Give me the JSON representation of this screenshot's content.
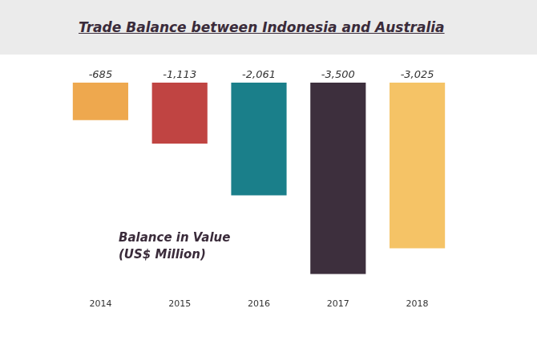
{
  "chart_data": {
    "type": "bar",
    "title": "Trade Balance between Indonesia and Australia",
    "annotation": [
      "Balance in Value",
      "(US$ Million)"
    ],
    "categories": [
      "2014",
      "2015",
      "2016",
      "2017",
      "2018"
    ],
    "values": [
      -685,
      -1113,
      -2061,
      -3500,
      -3025
    ],
    "value_labels": [
      "-685",
      "-1,113",
      "-2,061",
      "-3,500",
      "-3,025"
    ],
    "colors": [
      "#eea84e",
      "#c04442",
      "#1a7f8a",
      "#3d2f3d",
      "#f5c366"
    ],
    "ylim": [
      -3500,
      0
    ],
    "grid": false,
    "data_labels": true,
    "tick_labels": "x"
  }
}
